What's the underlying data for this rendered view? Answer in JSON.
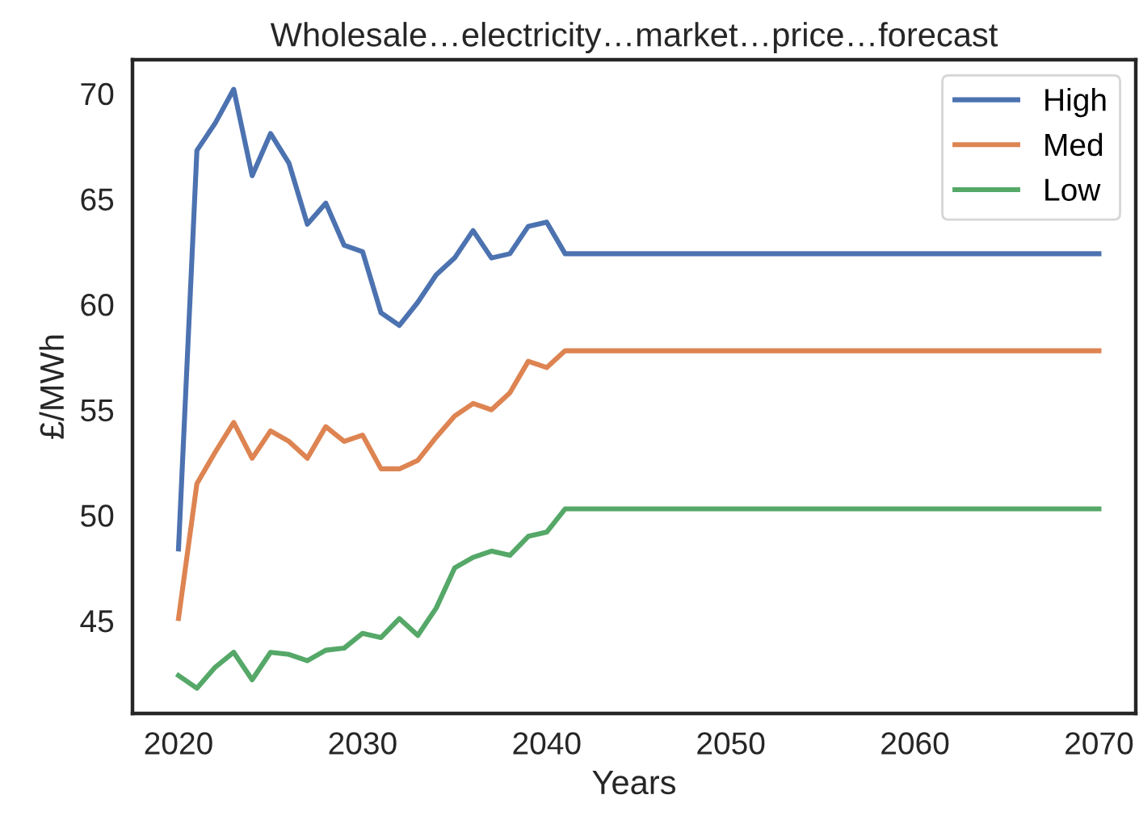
{
  "chart_data": {
    "type": "line",
    "title": "Wholesale…electricity…market…price…forecast",
    "xlabel": "Years",
    "ylabel": "£/MWh",
    "x": [
      2020,
      2021,
      2022,
      2023,
      2024,
      2025,
      2026,
      2027,
      2028,
      2029,
      2030,
      2031,
      2032,
      2033,
      2034,
      2035,
      2036,
      2037,
      2038,
      2039,
      2040,
      2041,
      2070
    ],
    "series": [
      {
        "name": "High",
        "color": "#4c72b0",
        "values": [
          48.4,
          67.3,
          68.6,
          70.2,
          66.1,
          68.1,
          66.7,
          63.8,
          64.8,
          62.8,
          62.5,
          59.6,
          59.0,
          60.1,
          61.4,
          62.2,
          63.5,
          62.2,
          62.4,
          63.7,
          63.9,
          62.4,
          62.4
        ]
      },
      {
        "name": "Med",
        "color": "#dd8452",
        "values": [
          45.1,
          51.5,
          53.0,
          54.4,
          52.7,
          54.0,
          53.5,
          52.7,
          54.2,
          53.5,
          53.8,
          52.2,
          52.2,
          52.6,
          53.7,
          54.7,
          55.3,
          55.0,
          55.8,
          57.3,
          57.0,
          57.8,
          57.8
        ]
      },
      {
        "name": "Low",
        "color": "#55a868",
        "values": [
          42.4,
          41.8,
          42.8,
          43.5,
          42.2,
          43.5,
          43.4,
          43.1,
          43.6,
          43.7,
          44.4,
          44.2,
          45.1,
          44.3,
          45.6,
          47.5,
          48.0,
          48.3,
          48.1,
          49.0,
          49.2,
          50.3,
          50.3
        ]
      }
    ],
    "xlim": [
      2017.5,
      2072
    ],
    "ylim": [
      40.6,
      71.6
    ],
    "xticks": [
      2020,
      2030,
      2040,
      2050,
      2060,
      2070
    ],
    "yticks": [
      45,
      50,
      55,
      60,
      65,
      70
    ],
    "grid": false,
    "legend": "top right",
    "marker": "none",
    "line_style": "solid"
  }
}
